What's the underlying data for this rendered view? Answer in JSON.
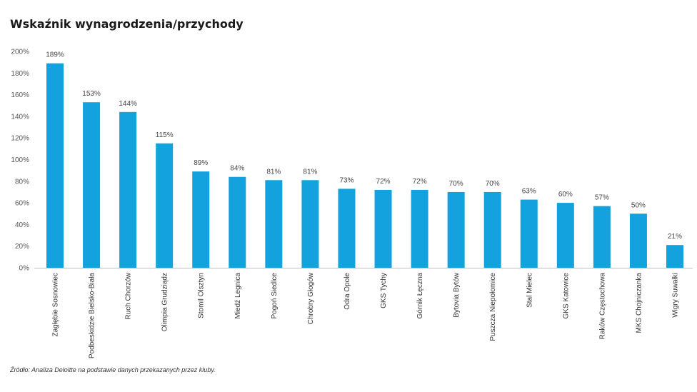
{
  "chart_data": {
    "type": "bar",
    "title": "Wskaźnik wynagrodzenia/przychody",
    "xlabel": "",
    "ylabel": "",
    "ylim": [
      0,
      200
    ],
    "yticks": [
      "0%",
      "20%",
      "40%",
      "60%",
      "80%",
      "100%",
      "120%",
      "140%",
      "160%",
      "180%",
      "200%"
    ],
    "grid": false,
    "bar_color": "#13a2dd",
    "categories": [
      "Zagłębie Sosnowiec",
      "Podbeskidzie Bielsko-Biała",
      "Ruch Chorzów",
      "Olimpia Grudziądz",
      "Stomil Olsztyn",
      "Miedź Legnica",
      "Pogoń Siedlce",
      "Chrobry Głogów",
      "Odra Opole",
      "GKS Tychy",
      "Górnik Łęczna",
      "Bytovia Bytów",
      "Puszcza Niepołomice",
      "Stal Mielec",
      "GKS Katowice",
      "Raków Częstochowa",
      "MKS Chojniczanka",
      "Wigry Suwałki"
    ],
    "values": [
      189,
      153,
      144,
      115,
      89,
      84,
      81,
      81,
      73,
      72,
      72,
      70,
      70,
      63,
      60,
      57,
      50,
      21
    ],
    "value_labels": [
      "189%",
      "153%",
      "144%",
      "115%",
      "89%",
      "84%",
      "81%",
      "81%",
      "73%",
      "72%",
      "72%",
      "70%",
      "70%",
      "63%",
      "60%",
      "57%",
      "50%",
      "21%"
    ]
  },
  "source": "Źródło: Analiza Deloitte na podstawie danych przekazanych przez kluby."
}
